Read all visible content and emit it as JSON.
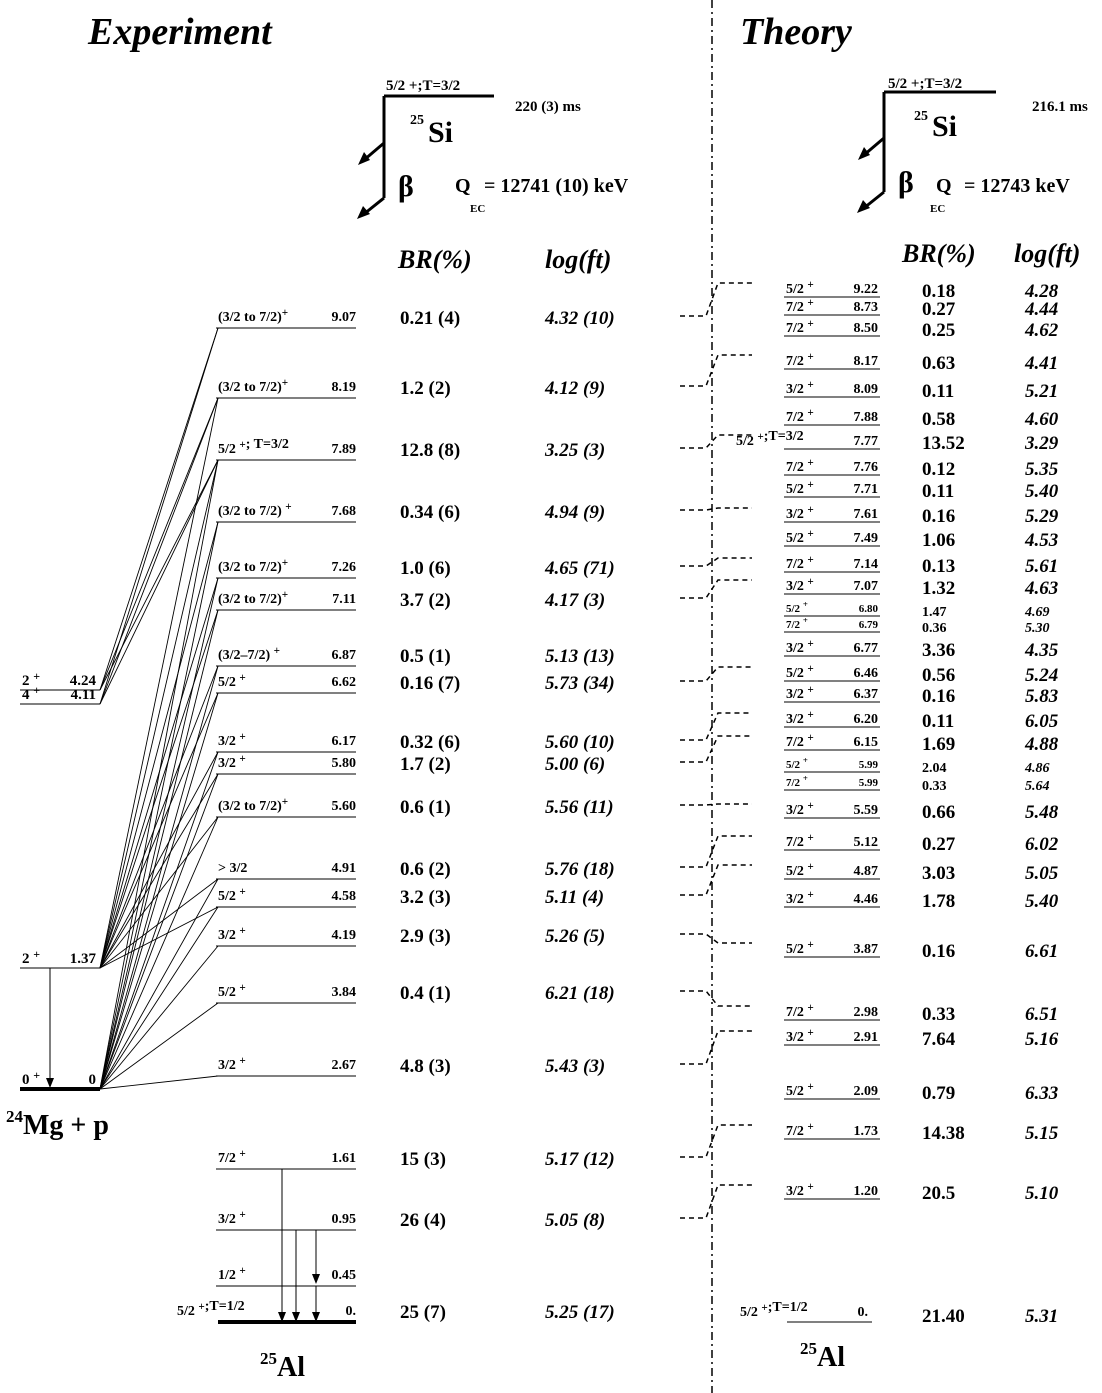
{
  "headers": {
    "experiment": "Experiment",
    "theory": "Theory"
  },
  "parent_exp": {
    "spin": "5/2 +;T=3/2",
    "nucleus_mass": "25",
    "nucleus": "Si",
    "halflife": "220 (3) ms",
    "beta": "β",
    "q_label": "Q",
    "q_sub": "EC",
    "q_value": "= 12741 (10) keV"
  },
  "parent_th": {
    "spin": "5/2 +;T=3/2",
    "nucleus_mass": "25",
    "nucleus": "Si",
    "halflife": "216.1 ms",
    "beta": "β",
    "q_label": "Q",
    "q_sub": "EC",
    "q_value": "= 12743 keV"
  },
  "col_headers": {
    "br_exp": "BR(%)",
    "ft_exp": "log(ft)",
    "br_th": "BR(%)",
    "ft_th": "log(ft)"
  },
  "mg_levels": [
    {
      "label": "2+",
      "energy": "4.24"
    },
    {
      "label": "4+",
      "energy": "4.11"
    },
    {
      "label": "2+",
      "energy": "1.37"
    },
    {
      "label": "0+",
      "energy": "0"
    }
  ],
  "mg_label": {
    "mass": "24",
    "text": "Mg + p"
  },
  "daughter_exp": {
    "mass": "25",
    "name": "Al"
  },
  "daughter_th": {
    "mass": "25",
    "name": "Al"
  },
  "exp_levels": [
    {
      "spin": "(3/2 to 7/2)+",
      "energy": "9.07",
      "br": "0.21 (4)",
      "logft": "4.32 (10)"
    },
    {
      "spin": "(3/2 to 7/2)+",
      "energy": "8.19",
      "br": "1.2 (2)",
      "logft": "4.12 (9)"
    },
    {
      "spin": "5/2 +; T=3/2",
      "energy": "7.89",
      "br": "12.8 (8)",
      "logft": "3.25 (3)"
    },
    {
      "spin": "(3/2 to 7/2) +",
      "energy": "7.68",
      "br": "0.34 (6)",
      "logft": "4.94 (9)"
    },
    {
      "spin": "(3/2 to 7/2)+",
      "energy": "7.26",
      "br": "1.0 (6)",
      "logft": "4.65 (71)"
    },
    {
      "spin": "(3/2 to 7/2)+",
      "energy": "7.11",
      "br": "3.7 (2)",
      "logft": "4.17 (3)"
    },
    {
      "spin": "(3/2–7/2) +",
      "energy": "6.87",
      "br": "0.5 (1)",
      "logft": "5.13 (13)"
    },
    {
      "spin": "5/2 +",
      "energy": "6.62",
      "br": "0.16 (7)",
      "logft": "5.73 (34)"
    },
    {
      "spin": "3/2 +",
      "energy": "6.17",
      "br": "0.32 (6)",
      "logft": "5.60 (10)"
    },
    {
      "spin": "3/2 +",
      "energy": "5.80",
      "br": "1.7 (2)",
      "logft": "5.00 (6)"
    },
    {
      "spin": "(3/2 to 7/2)+",
      "energy": "5.60",
      "br": "0.6 (1)",
      "logft": "5.56 (11)"
    },
    {
      "spin": "> 3/2",
      "energy": "4.91",
      "br": "0.6 (2)",
      "logft": "5.76 (18)"
    },
    {
      "spin": "5/2 +",
      "energy": "4.58",
      "br": "3.2 (3)",
      "logft": "5.11 (4)"
    },
    {
      "spin": "3/2 +",
      "energy": "4.19",
      "br": "2.9 (3)",
      "logft": "5.26 (5)"
    },
    {
      "spin": "5/2 +",
      "energy": "3.84",
      "br": "0.4 (1)",
      "logft": "6.21 (18)"
    },
    {
      "spin": "3/2 +",
      "energy": "2.67",
      "br": "4.8 (3)",
      "logft": "5.43 (3)"
    },
    {
      "spin": "7/2 +",
      "energy": "1.61",
      "br": "15 (3)",
      "logft": "5.17 (12)"
    },
    {
      "spin": "3/2 +",
      "energy": "0.95",
      "br": "26 (4)",
      "logft": "5.05 (8)"
    },
    {
      "spin": "1/2 +",
      "energy": "0.45",
      "br": "",
      "logft": ""
    },
    {
      "spin": "5/2 +;T=1/2",
      "energy": "0.",
      "br": "25 (7)",
      "logft": "5.25 (17)"
    }
  ],
  "th_levels": [
    {
      "spin": "5/2 +",
      "energy": "9.22",
      "br": "0.18",
      "logft": "4.28"
    },
    {
      "spin": "7/2 +",
      "energy": "8.73",
      "br": "0.27",
      "logft": "4.44"
    },
    {
      "spin": "7/2 +",
      "energy": "8.50",
      "br": "0.25",
      "logft": "4.62"
    },
    {
      "spin": "7/2 +",
      "energy": "8.17",
      "br": "0.63",
      "logft": "4.41"
    },
    {
      "spin": "3/2 +",
      "energy": "8.09",
      "br": "0.11",
      "logft": "5.21"
    },
    {
      "spin": "7/2 +",
      "energy": "7.88",
      "br": "0.58",
      "logft": "4.60"
    },
    {
      "spin": "5/2 +;T=3/2",
      "energy": "7.77",
      "br": "13.52",
      "logft": "3.29"
    },
    {
      "spin": "7/2 +",
      "energy": "7.76",
      "br": "0.12",
      "logft": "5.35"
    },
    {
      "spin": "5/2 +",
      "energy": "7.71",
      "br": "0.11",
      "logft": "5.40"
    },
    {
      "spin": "3/2 +",
      "energy": "7.61",
      "br": "0.16",
      "logft": "5.29"
    },
    {
      "spin": "5/2 +",
      "energy": "7.49",
      "br": "1.06",
      "logft": "4.53"
    },
    {
      "spin": "7/2 +",
      "energy": "7.14",
      "br": "0.13",
      "logft": "5.61"
    },
    {
      "spin": "3/2 +",
      "energy": "7.07",
      "br": "1.32",
      "logft": "4.63"
    },
    {
      "spin": "5/2 +",
      "energy": "6.80",
      "br": "1.47",
      "logft": "4.69"
    },
    {
      "spin": "7/2 +",
      "energy": "6.79",
      "br": "0.36",
      "logft": "5.30"
    },
    {
      "spin": "3/2 +",
      "energy": "6.77",
      "br": "3.36",
      "logft": "4.35"
    },
    {
      "spin": "5/2 +",
      "energy": "6.46",
      "br": "0.56",
      "logft": "5.24"
    },
    {
      "spin": "3/2 +",
      "energy": "6.37",
      "br": "0.16",
      "logft": "5.83"
    },
    {
      "spin": "3/2 +",
      "energy": "6.20",
      "br": "0.11",
      "logft": "6.05"
    },
    {
      "spin": "7/2 +",
      "energy": "6.15",
      "br": "1.69",
      "logft": "4.88"
    },
    {
      "spin": "5/2 +",
      "energy": "5.99",
      "br": "2.04",
      "logft": "4.86"
    },
    {
      "spin": "7/2 +",
      "energy": "5.99",
      "br": "0.33",
      "logft": "5.64"
    },
    {
      "spin": "3/2 +",
      "energy": "5.59",
      "br": "0.66",
      "logft": "5.48"
    },
    {
      "spin": "7/2 +",
      "energy": "5.12",
      "br": "0.27",
      "logft": "6.02"
    },
    {
      "spin": "5/2 +",
      "energy": "4.87",
      "br": "3.03",
      "logft": "5.05"
    },
    {
      "spin": "3/2 +",
      "energy": "4.46",
      "br": "1.78",
      "logft": "5.40"
    },
    {
      "spin": "5/2 +",
      "energy": "3.87",
      "br": "0.16",
      "logft": "6.61"
    },
    {
      "spin": "7/2 +",
      "energy": "2.98",
      "br": "0.33",
      "logft": "6.51"
    },
    {
      "spin": "3/2 +",
      "energy": "2.91",
      "br": "7.64",
      "logft": "5.16"
    },
    {
      "spin": "5/2 +",
      "energy": "2.09",
      "br": "0.79",
      "logft": "6.33"
    },
    {
      "spin": "7/2 +",
      "energy": "1.73",
      "br": "14.38",
      "logft": "5.15"
    },
    {
      "spin": "3/2 +",
      "energy": "1.20",
      "br": "20.5",
      "logft": "5.10"
    },
    {
      "spin": "5/2 +;T=1/2",
      "energy": "0.",
      "br": "21.40",
      "logft": "5.31"
    }
  ]
}
